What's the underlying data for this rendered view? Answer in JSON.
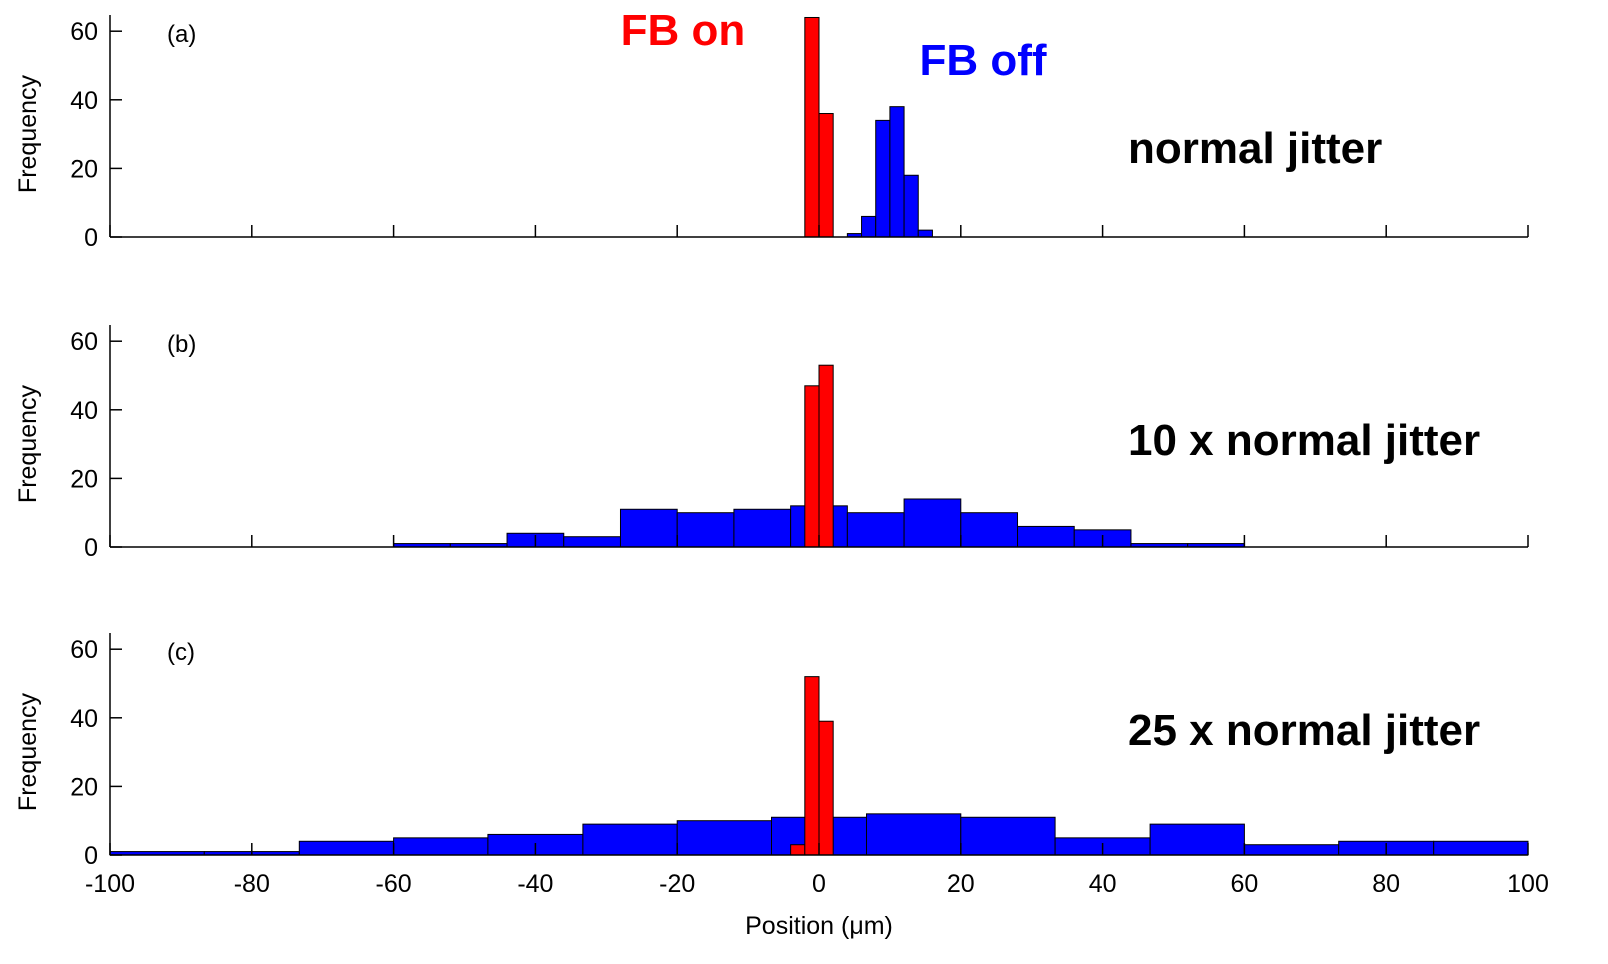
{
  "chart_data": {
    "type": "histogram",
    "xlabel": "Position (μm)",
    "ylabel": "Frequency",
    "xlim": [
      -100,
      100
    ],
    "ylim": [
      0,
      65
    ],
    "xticks": [
      -100,
      -80,
      -60,
      -40,
      -20,
      0,
      20,
      40,
      60,
      80,
      100
    ],
    "yticks": [
      0,
      20,
      40,
      60
    ],
    "legend": [
      {
        "label": "FB on",
        "color": "#ff0000"
      },
      {
        "label": "FB off",
        "color": "#0000ff"
      }
    ],
    "panels": [
      {
        "tag": "(a)",
        "label": "normal jitter",
        "series": [
          {
            "name": "FB off",
            "color": "#0000ff",
            "bins": [
              {
                "x0": 4.0,
                "x1": 6.0,
                "count": 1
              },
              {
                "x0": 6.0,
                "x1": 8.0,
                "count": 6
              },
              {
                "x0": 8.0,
                "x1": 10.0,
                "count": 34
              },
              {
                "x0": 10.0,
                "x1": 12.0,
                "count": 38
              },
              {
                "x0": 12.0,
                "x1": 14.0,
                "count": 18
              },
              {
                "x0": 14.0,
                "x1": 16.0,
                "count": 2
              }
            ]
          },
          {
            "name": "FB on",
            "color": "#ff0000",
            "bins": [
              {
                "x0": -2.0,
                "x1": 0.0,
                "count": 64
              },
              {
                "x0": 0.0,
                "x1": 2.0,
                "count": 36
              }
            ]
          }
        ]
      },
      {
        "tag": "(b)",
        "label": "10 x normal jitter",
        "series": [
          {
            "name": "FB off",
            "color": "#0000ff",
            "bins": [
              {
                "x0": -60,
                "x1": -52,
                "count": 1
              },
              {
                "x0": -52,
                "x1": -44,
                "count": 1
              },
              {
                "x0": -44,
                "x1": -36,
                "count": 4
              },
              {
                "x0": -36,
                "x1": -28,
                "count": 3
              },
              {
                "x0": -28,
                "x1": -20,
                "count": 11
              },
              {
                "x0": -20,
                "x1": -12,
                "count": 10
              },
              {
                "x0": -12,
                "x1": -4,
                "count": 11
              },
              {
                "x0": -4,
                "x1": 4,
                "count": 12
              },
              {
                "x0": 4,
                "x1": 12,
                "count": 10
              },
              {
                "x0": 12,
                "x1": 20,
                "count": 14
              },
              {
                "x0": 20,
                "x1": 28,
                "count": 10
              },
              {
                "x0": 28,
                "x1": 36,
                "count": 6
              },
              {
                "x0": 36,
                "x1": 44,
                "count": 5
              },
              {
                "x0": 44,
                "x1": 52,
                "count": 1
              },
              {
                "x0": 52,
                "x1": 60,
                "count": 1
              }
            ]
          },
          {
            "name": "FB on",
            "color": "#ff0000",
            "bins": [
              {
                "x0": -2.0,
                "x1": 0.0,
                "count": 47
              },
              {
                "x0": 0.0,
                "x1": 2.0,
                "count": 53
              }
            ]
          }
        ]
      },
      {
        "tag": "(c)",
        "label": "25 x normal jitter",
        "series": [
          {
            "name": "FB off",
            "color": "#0000ff",
            "bins": [
              {
                "x0": -100.0,
                "x1": -86.7,
                "count": 1
              },
              {
                "x0": -86.7,
                "x1": -73.3,
                "count": 1
              },
              {
                "x0": -73.3,
                "x1": -60.0,
                "count": 4
              },
              {
                "x0": -60.0,
                "x1": -46.7,
                "count": 5
              },
              {
                "x0": -46.7,
                "x1": -33.3,
                "count": 6
              },
              {
                "x0": -33.3,
                "x1": -20.0,
                "count": 9
              },
              {
                "x0": -20.0,
                "x1": -6.7,
                "count": 10
              },
              {
                "x0": -6.7,
                "x1": 6.7,
                "count": 11
              },
              {
                "x0": 6.7,
                "x1": 20.0,
                "count": 12
              },
              {
                "x0": 20.0,
                "x1": 33.3,
                "count": 11
              },
              {
                "x0": 33.3,
                "x1": 46.7,
                "count": 5
              },
              {
                "x0": 46.7,
                "x1": 60.0,
                "count": 9
              },
              {
                "x0": 60.0,
                "x1": 73.3,
                "count": 3
              },
              {
                "x0": 73.3,
                "x1": 86.7,
                "count": 4
              },
              {
                "x0": 86.7,
                "x1": 100.0,
                "count": 4
              }
            ]
          },
          {
            "name": "FB on",
            "color": "#ff0000",
            "bins": [
              {
                "x0": -4.0,
                "x1": -2.0,
                "count": 3
              },
              {
                "x0": -2.0,
                "x1": 0.0,
                "count": 52
              },
              {
                "x0": 0.0,
                "x1": 2.0,
                "count": 39
              }
            ]
          }
        ]
      }
    ]
  }
}
